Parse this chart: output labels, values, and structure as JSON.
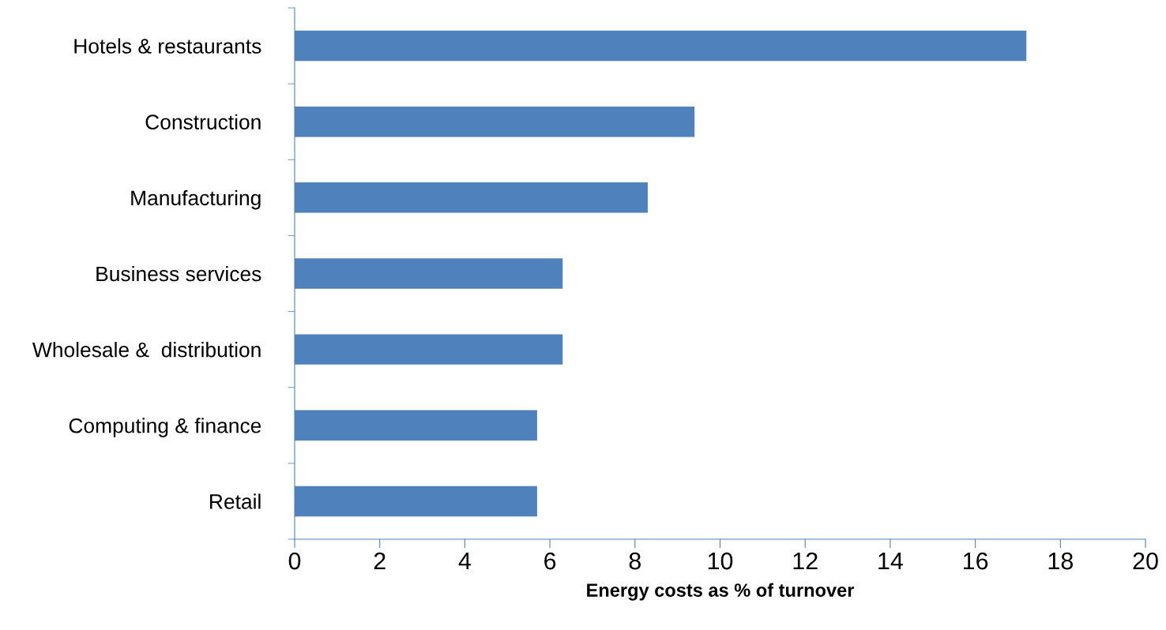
{
  "chart_data": {
    "type": "bar",
    "orientation": "horizontal",
    "xlabel": "Energy costs as % of turnover",
    "categories": [
      "Hotels & restaurants",
      "Construction",
      "Manufacturing",
      "Business services",
      "Wholesale &  distribution",
      "Computing & finance",
      "Retail"
    ],
    "values": [
      17.2,
      9.4,
      8.3,
      6.3,
      6.3,
      5.7,
      5.7
    ],
    "color": "#4f81bd",
    "xlim": [
      0,
      20
    ],
    "xticks": [
      0,
      2,
      4,
      6,
      8,
      10,
      12,
      14,
      16,
      18,
      20
    ],
    "grid": false
  }
}
